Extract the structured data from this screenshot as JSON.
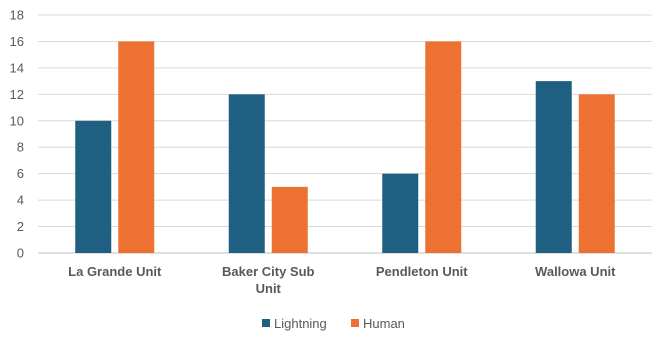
{
  "chart_data": {
    "type": "bar",
    "categories": [
      [
        "La Grande Unit"
      ],
      [
        "Baker City Sub",
        "Unit"
      ],
      [
        "Pendleton Unit"
      ],
      [
        "Wallowa Unit"
      ]
    ],
    "series": [
      {
        "name": "Lightning",
        "values": [
          10,
          12,
          6,
          13
        ],
        "color": "#1f5f82"
      },
      {
        "name": "Human",
        "values": [
          16,
          5,
          16,
          12
        ],
        "color": "#ed7231"
      }
    ],
    "ylim": [
      0,
      18
    ],
    "yticks": [
      0,
      2,
      4,
      6,
      8,
      10,
      12,
      14,
      16,
      18
    ],
    "grid": true,
    "legend_position": "bottom",
    "title": "",
    "xlabel": "",
    "ylabel": ""
  }
}
